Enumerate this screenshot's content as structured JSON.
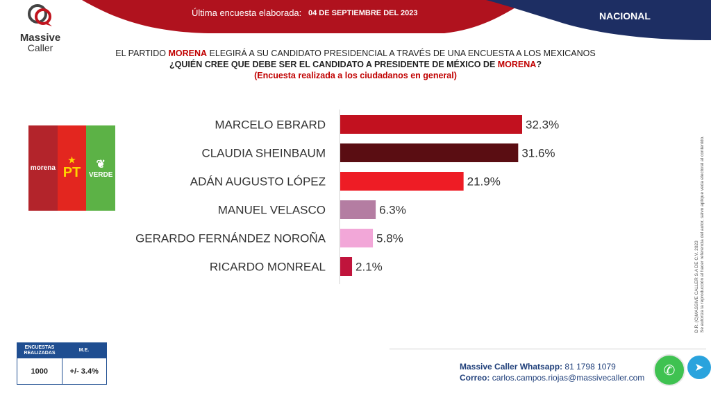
{
  "brand": {
    "name": "Massive",
    "sub": "Caller"
  },
  "header": {
    "date_label": "Última encuesta elaborada:",
    "date": "04 DE SEPTIEMBRE DEL 2023",
    "scope": "NACIONAL"
  },
  "headline": {
    "line1_a": "EL PARTIDO ",
    "line1_b": "MORENA",
    "line1_c": " ELEGIRÁ A SU CANDIDATO PRESIDENCIAL A TRAVÉS DE UNA ENCUESTA A LOS MEXICANOS",
    "line2_a": "¿QUIÉN CREE QUE DEBE SER EL CANDIDATO A PRESIDENTE DE MÉXICO DE ",
    "line2_b": "MORENA",
    "line2_c": "?",
    "line3": "(Encuesta realizada a los ciudadanos en general)"
  },
  "parties": {
    "morena": "morena",
    "pt": "PT",
    "verde": "VERDE"
  },
  "chart_data": {
    "type": "bar",
    "orientation": "horizontal",
    "categories": [
      "MARCELO EBRARD",
      "CLAUDIA SHEINBAUM",
      "ADÁN AUGUSTO LÓPEZ",
      "MANUEL VELASCO",
      "GERARDO FERNÁNDEZ NOROÑA",
      "RICARDO MONREAL"
    ],
    "values": [
      32.3,
      31.6,
      21.9,
      6.3,
      5.8,
      2.1
    ],
    "value_labels": [
      "32.3%",
      "31.6%",
      "21.9%",
      "6.3%",
      "5.8%",
      "2.1%"
    ],
    "colors": [
      "#c2111f",
      "#5a0d12",
      "#ee1c25",
      "#b47da2",
      "#f2a7d8",
      "#c0143c"
    ],
    "unit": "%",
    "xlim": [
      0,
      33
    ],
    "title": "",
    "xlabel": "",
    "ylabel": ""
  },
  "stats": {
    "col1_header": "ENCUESTAS REALIZADAS",
    "col2_header": "M.E.",
    "surveys": "1000",
    "margin": "+/- 3.4%"
  },
  "side_note": {
    "line1": "D.R. (C)MASSIVE CALLER S.A DE C.V. 2023",
    "line2": "Se autoriza la reproducción al hacer referencia del autor, salvo aplique veda electoral al contenido."
  },
  "contact": {
    "whatsapp_label": "Massive Caller Whatsapp:",
    "whatsapp": "81 1798 1079",
    "email_label": "Correo:",
    "email": "carlos.campos.riojas@massivecaller.com"
  },
  "icons": {
    "whatsapp": "whatsapp-icon",
    "telegram": "telegram-icon"
  }
}
